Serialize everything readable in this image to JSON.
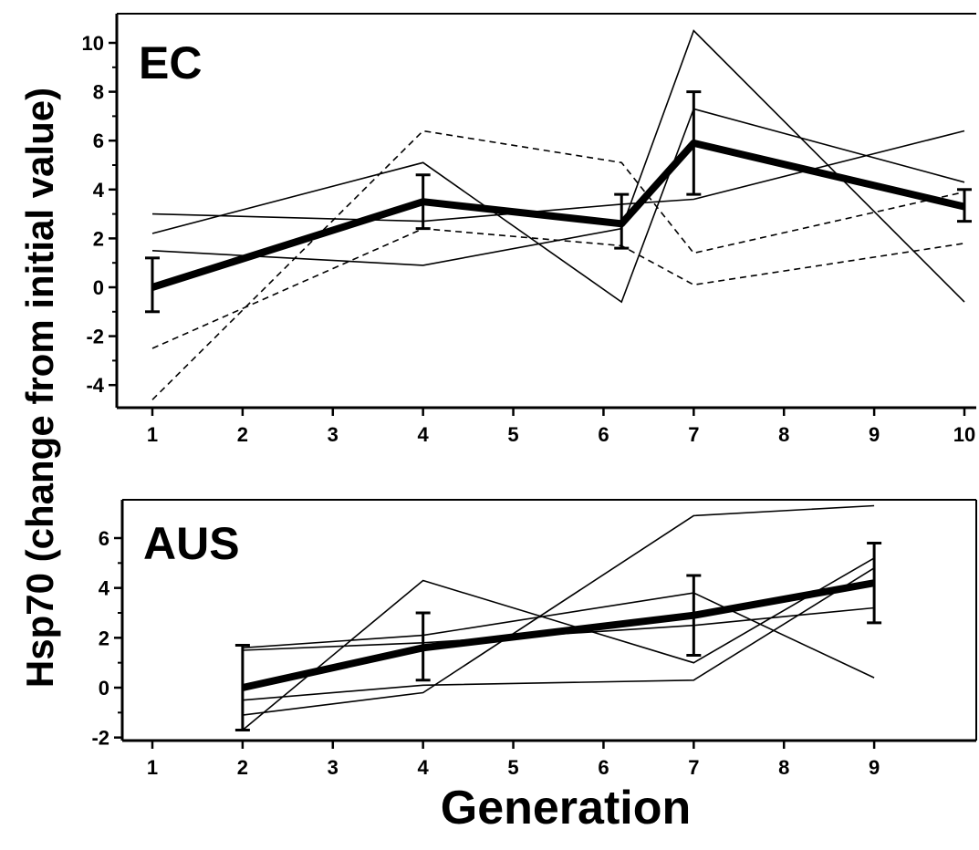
{
  "figure": {
    "ylabel": "Hsp70 (change from initial value)",
    "xlabel": "Generation"
  },
  "chart_data": [
    {
      "type": "line",
      "panel_label": "EC",
      "xlim": [
        0.5,
        10.15
      ],
      "ylim": [
        -4.8,
        11.2
      ],
      "xticks": [
        1,
        2,
        3,
        4,
        5,
        6,
        7,
        8,
        9,
        10
      ],
      "yticks": [
        -4,
        -2,
        0,
        2,
        4,
        6,
        8,
        10
      ],
      "series": [
        {
          "style": "solid",
          "x": [
            1,
            4,
            6.2,
            7,
            10
          ],
          "y": [
            2.2,
            5.1,
            -0.6,
            7.3,
            4.3
          ]
        },
        {
          "style": "solid",
          "x": [
            1,
            4,
            6.2,
            7,
            10
          ],
          "y": [
            1.5,
            0.9,
            2.4,
            10.5,
            -0.6
          ]
        },
        {
          "style": "solid",
          "x": [
            1,
            4,
            6.2,
            7,
            10
          ],
          "y": [
            3.0,
            2.7,
            3.4,
            3.6,
            6.4
          ]
        },
        {
          "style": "dashed",
          "x": [
            1,
            4,
            6.2,
            7,
            10
          ],
          "y": [
            -2.5,
            2.4,
            1.7,
            0.1,
            1.8
          ]
        },
        {
          "style": "dashed",
          "x": [
            1,
            4,
            6.2,
            7,
            10
          ],
          "y": [
            -4.6,
            6.4,
            5.1,
            1.4,
            3.9
          ]
        },
        {
          "style": "mean",
          "x": [
            1,
            4,
            6.2,
            7,
            10
          ],
          "y": [
            0.0,
            3.5,
            2.6,
            5.9,
            3.3
          ],
          "error_low": [
            -1.0,
            2.4,
            1.6,
            3.8,
            2.7
          ],
          "error_high": [
            1.2,
            4.6,
            3.8,
            8.0,
            4.0
          ]
        }
      ]
    },
    {
      "type": "line",
      "panel_label": "AUS",
      "xlim": [
        0.5,
        10.0
      ],
      "ylim": [
        -2.2,
        7.6
      ],
      "xticks": [
        1,
        2,
        3,
        4,
        5,
        6,
        7,
        8,
        9
      ],
      "yticks": [
        -2,
        0,
        2,
        4,
        6
      ],
      "series": [
        {
          "style": "solid",
          "x": [
            2,
            4,
            7,
            9
          ],
          "y": [
            1.6,
            2.1,
            3.8,
            0.4
          ]
        },
        {
          "style": "solid",
          "x": [
            2,
            4,
            7,
            9
          ],
          "y": [
            -1.7,
            4.3,
            1.0,
            5.2
          ]
        },
        {
          "style": "solid",
          "x": [
            2,
            4,
            7,
            9
          ],
          "y": [
            -0.5,
            0.1,
            0.3,
            4.8
          ]
        },
        {
          "style": "solid",
          "x": [
            2,
            4,
            7,
            9
          ],
          "y": [
            -1.1,
            -0.2,
            6.9,
            7.3
          ]
        },
        {
          "style": "solid",
          "x": [
            2,
            4,
            7,
            9
          ],
          "y": [
            1.5,
            1.8,
            2.5,
            3.2
          ]
        },
        {
          "style": "mean",
          "x": [
            2,
            4,
            7,
            9
          ],
          "y": [
            0.0,
            1.6,
            2.9,
            4.2
          ],
          "error_low": [
            -1.7,
            0.3,
            1.3,
            2.6
          ],
          "error_high": [
            1.7,
            3.0,
            4.5,
            5.8
          ]
        }
      ]
    }
  ]
}
